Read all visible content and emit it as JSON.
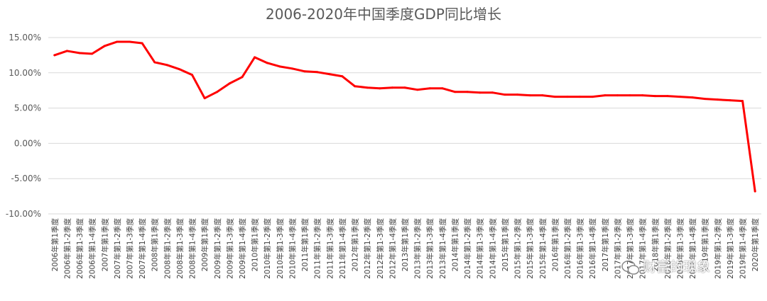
{
  "chart_data": {
    "type": "line",
    "title": "2006-2020年中国季度GDP同比增长",
    "xlabel": "",
    "ylabel": "",
    "ylim": [
      -0.1,
      0.15
    ],
    "yticks": [
      "15.00%",
      "10.00%",
      "5.00%",
      "0.00%",
      "-5.00%",
      "-10.00%"
    ],
    "grid": true,
    "legend": "none",
    "line_color": "#ff0000",
    "categories": [
      "2006年第1季度",
      "2006年第1-2季度",
      "2006年第1-3季度",
      "2006年第1-4季度",
      "2007年第1季度",
      "2007年第1-2季度",
      "2007年第1-3季度",
      "2007年第1-4季度",
      "2008年第1季度",
      "2008年第1-2季度",
      "2008年第1-3季度",
      "2008年第1-4季度",
      "2009年第1季度",
      "2009年第1-2季度",
      "2009年第1-3季度",
      "2009年第1-4季度",
      "2010年第1季度",
      "2010年第1-2季度",
      "2010年第1-3季度",
      "2010年第1-4季度",
      "2011年第1季度",
      "2011年第1-2季度",
      "2011年第1-3季度",
      "2011年第1-4季度",
      "2012年第1季度",
      "2012年第1-2季度",
      "2012年第1-3季度",
      "2012年第1-4季度",
      "2013年第1季度",
      "2013年第1-2季度",
      "2013年第1-3季度",
      "2013年第1-4季度",
      "2014年第1季度",
      "2014年第1-2季度",
      "2014年第1-3季度",
      "2014年第1-4季度",
      "2015年第1季度",
      "2015年第1-2季度",
      "2015年第1-3季度",
      "2015年第1-4季度",
      "2016年第1季度",
      "2016年第1-2季度",
      "2016年第1-3季度",
      "2016年第1-4季度",
      "2017年第1季度",
      "2017年第1-2季度",
      "2017年第1-3季度",
      "2017年第1-4季度",
      "2018年第1季度",
      "2018年第1-2季度",
      "2018年第1-3季度",
      "2018年第1-4季度",
      "2019年第1季度",
      "2019年第1-2季度",
      "2019年第1-3季度",
      "2019年第1-4季度",
      "2020年第1季度"
    ],
    "values": [
      0.125,
      0.131,
      0.128,
      0.127,
      0.138,
      0.144,
      0.144,
      0.142,
      0.115,
      0.111,
      0.105,
      0.097,
      0.064,
      0.073,
      0.085,
      0.094,
      0.122,
      0.114,
      0.109,
      0.106,
      0.102,
      0.101,
      0.098,
      0.095,
      0.081,
      0.079,
      0.078,
      0.079,
      0.079,
      0.076,
      0.078,
      0.078,
      0.073,
      0.073,
      0.072,
      0.072,
      0.069,
      0.069,
      0.068,
      0.068,
      0.066,
      0.066,
      0.066,
      0.066,
      0.068,
      0.068,
      0.068,
      0.068,
      0.067,
      0.067,
      0.066,
      0.065,
      0.063,
      0.062,
      0.061,
      0.06,
      -0.068
    ]
  },
  "watermark": "财富的现象"
}
